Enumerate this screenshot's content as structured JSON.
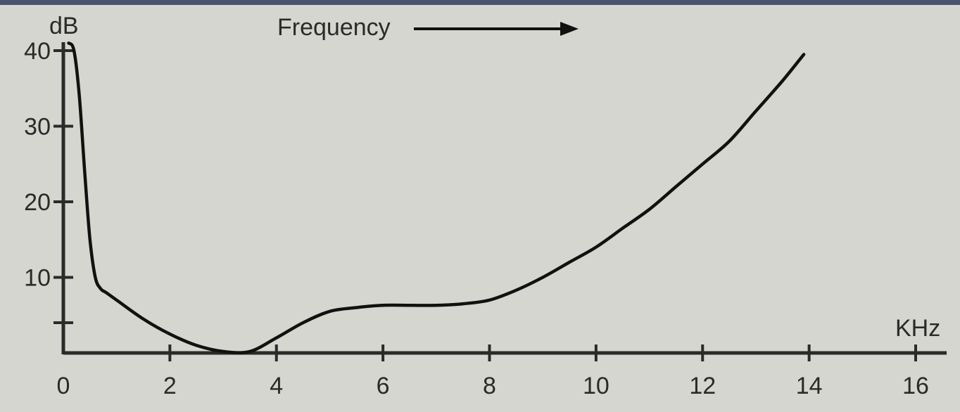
{
  "chart_data": {
    "type": "line",
    "title": "",
    "ylabel": "dB",
    "xlabel": "KHz",
    "annotation": "Frequency",
    "xlim": [
      0,
      16
    ],
    "ylim": [
      0,
      40
    ],
    "x_ticks": [
      0,
      2,
      4,
      6,
      8,
      10,
      12,
      14,
      16
    ],
    "x_tick_labels": [
      "0",
      "2",
      "4",
      "6",
      "8",
      "10",
      "12",
      "14",
      "16"
    ],
    "y_ticks": [
      10,
      20,
      30,
      40
    ],
    "y_tick_labels": [
      "10",
      "20",
      "30",
      "40"
    ],
    "y_minor_ticks": [
      4
    ],
    "grid": false,
    "series": [
      {
        "x": [
          0.1,
          0.2,
          0.3,
          0.4,
          0.5,
          0.6,
          0.7,
          0.8,
          1.0,
          1.5,
          2.0,
          2.5,
          3.0,
          3.5,
          4.0,
          4.5,
          5.0,
          5.5,
          6.0,
          6.5,
          7.0,
          7.5,
          8.0,
          8.5,
          9.0,
          9.5,
          10.0,
          10.5,
          11.0,
          11.5,
          12.0,
          12.5,
          13.0,
          13.5,
          13.9
        ],
        "y": [
          41,
          40,
          34,
          24,
          15,
          10,
          8.5,
          8,
          7,
          4.5,
          2.5,
          1,
          0.2,
          0.2,
          2,
          4,
          5.5,
          6,
          6.3,
          6.3,
          6.3,
          6.5,
          7,
          8.3,
          10,
          12,
          14,
          16.5,
          19,
          22,
          25,
          28,
          32,
          36,
          39.5
        ]
      }
    ],
    "colors": {
      "line": "#111111",
      "axis": "#2a2a2a",
      "background": "#d4d6cf",
      "frame": "#4a5570"
    }
  }
}
